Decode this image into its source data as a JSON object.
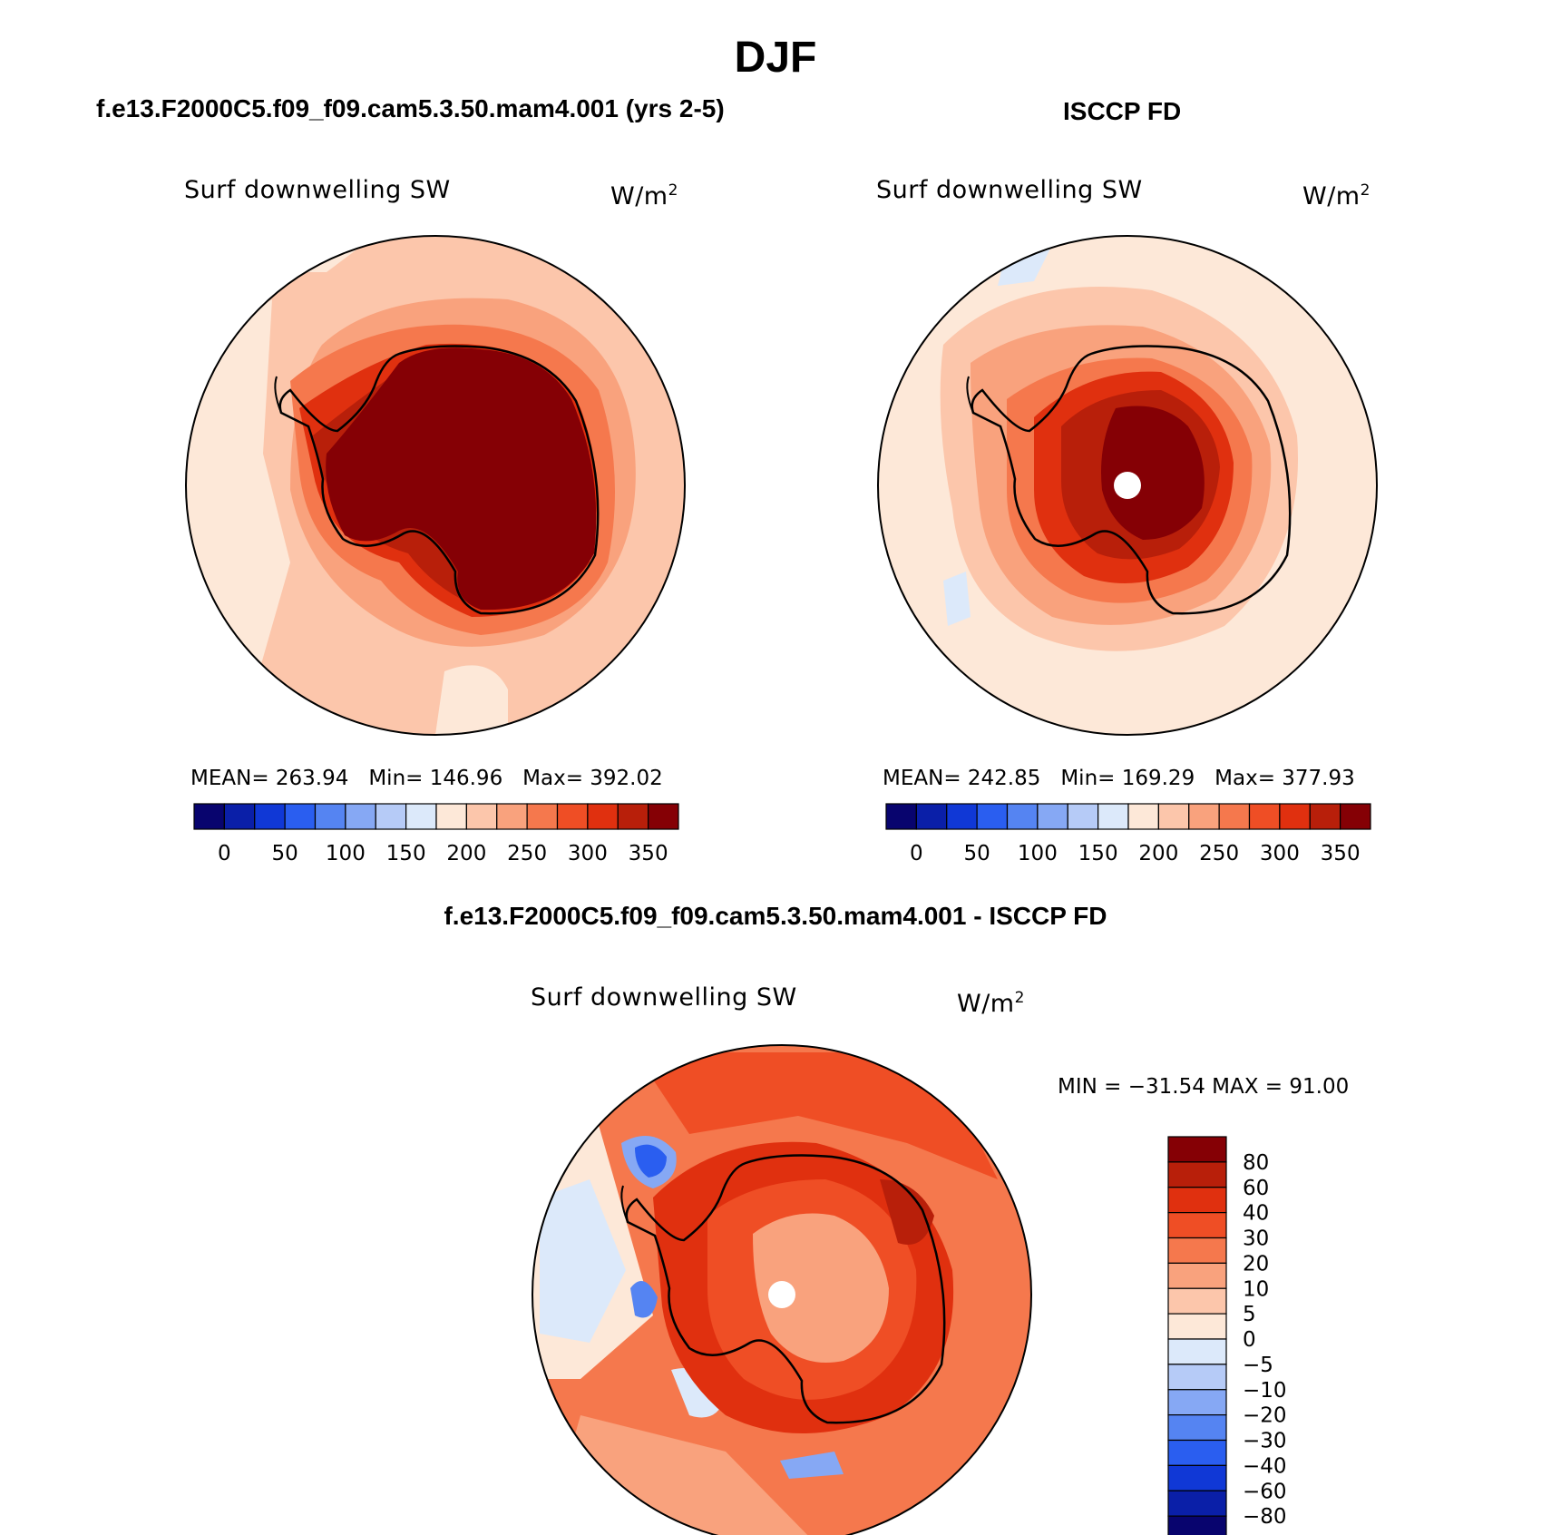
{
  "title": "DJF",
  "panels": [
    {
      "case": "f.e13.F2000C5.f09_f09.cam5.3.50.mam4.001 (yrs 2-5)",
      "variable": "Surf downwelling SW",
      "units": "W/m",
      "units_exp": "2",
      "mean_label": "MEAN= 263.94",
      "min_label": "Min= 146.96",
      "max_label": "Max= 392.02"
    },
    {
      "case": "ISCCP FD",
      "variable": "Surf downwelling SW",
      "units": "W/m",
      "units_exp": "2",
      "mean_label": "MEAN= 242.85",
      "min_label": "Min= 169.29",
      "max_label": "Max= 377.93"
    },
    {
      "case": "f.e13.F2000C5.f09_f09.cam5.3.50.mam4.001 - ISCCP FD",
      "variable": "Surf downwelling SW",
      "units": "W/m",
      "units_exp": "2",
      "minmax_label": "MIN = −31.54 MAX =  91.00"
    }
  ],
  "colorbar_abs": {
    "tick_labels": [
      "0",
      "50",
      "100",
      "150",
      "200",
      "250",
      "300",
      "350"
    ],
    "colors": [
      "#08046e",
      "#0a1fa8",
      "#1038d6",
      "#2a5ef0",
      "#5584f2",
      "#86a8f4",
      "#b6cbf7",
      "#dce9fa",
      "#fde8d8",
      "#fcc6ab",
      "#f9a27d",
      "#f5784d",
      "#ef4e25",
      "#e0300f",
      "#b81f0a",
      "#850005"
    ]
  },
  "colorbar_diff": {
    "tick_labels": [
      "80",
      "60",
      "40",
      "30",
      "20",
      "10",
      "5",
      "0",
      "−5",
      "−10",
      "−20",
      "−30",
      "−40",
      "−60",
      "−80"
    ],
    "colors": [
      "#850005",
      "#b81f0a",
      "#e0300f",
      "#ef4e25",
      "#f5784d",
      "#f9a27d",
      "#fcc6ab",
      "#fde8d8",
      "#dce9fa",
      "#b6cbf7",
      "#86a8f4",
      "#5584f2",
      "#2a5ef0",
      "#1038d6",
      "#0a1fa8",
      "#08046e"
    ]
  }
}
